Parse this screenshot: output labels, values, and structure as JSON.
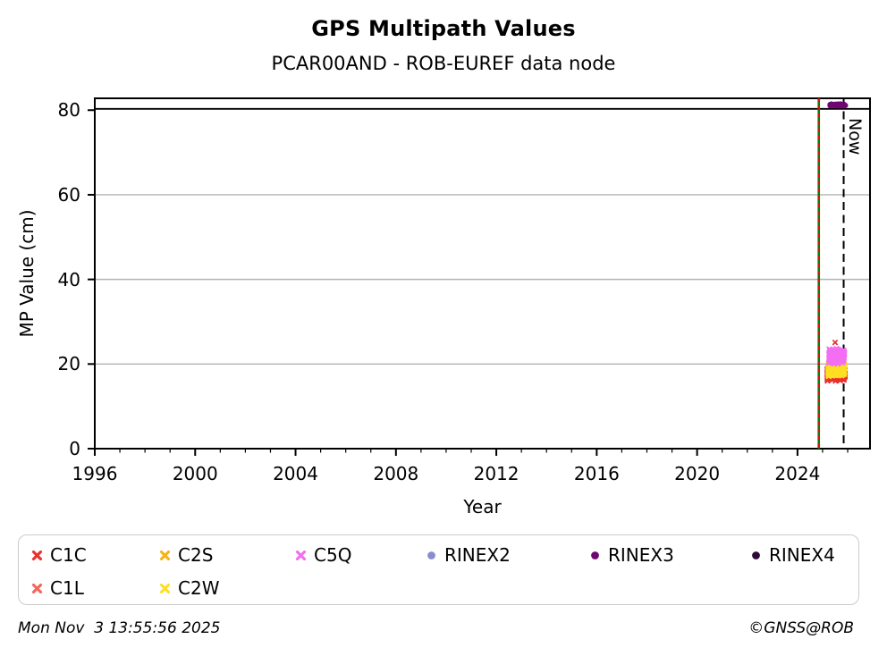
{
  "page": {
    "footer_left": "Mon Nov  3 13:55:56 2025",
    "footer_right": "©GNSS@ROB"
  },
  "chart_data": {
    "type": "scatter",
    "title": "GPS Multipath Values",
    "subtitle": "PCAR00AND - ROB-EUREF data node",
    "xlabel": "Year",
    "ylabel": "MP Value (cm)",
    "xlim": [
      1996,
      2026.89
    ],
    "ylim": [
      0,
      82.8
    ],
    "xticks": [
      1996,
      2000,
      2004,
      2008,
      2012,
      2016,
      2020,
      2024
    ],
    "minor_xtick_interval": 1,
    "yticks": [
      0,
      20,
      40,
      60,
      80
    ],
    "grid": {
      "axis": "y",
      "values": [
        20,
        40,
        60
      ],
      "color": "#b3b3b3"
    },
    "hline": {
      "y": 80.3,
      "color": "#000000"
    },
    "vlines": [
      {
        "name": "data-start-line",
        "x": 2024.85,
        "style": "solid-green-with-red-dashes",
        "color": "#008000",
        "dash_color": "#dd1111",
        "label": ""
      },
      {
        "name": "now-line",
        "x": 2025.84,
        "style": "dashed",
        "color": "#000000",
        "label": "Now"
      }
    ],
    "series": [
      {
        "name": "C1L",
        "marker": "x",
        "color": "#f4665c",
        "cluster": {
          "x_range": [
            2025.18,
            2025.88
          ],
          "y_range": [
            16.3,
            19.6
          ],
          "count": 230
        },
        "outliers": []
      },
      {
        "name": "C1C",
        "marker": "x",
        "color": "#e8312e",
        "cluster": {
          "x_range": [
            2025.18,
            2025.9
          ],
          "y_range": [
            15.9,
            19.2
          ],
          "count": 260
        },
        "outliers": [
          [
            2025.5,
            25.1
          ]
        ]
      },
      {
        "name": "C2S",
        "marker": "x",
        "color": "#f5b31a",
        "cluster": {
          "x_range": [
            2025.22,
            2025.88
          ],
          "y_range": [
            17.4,
            20.4
          ],
          "count": 260
        },
        "outliers": []
      },
      {
        "name": "C2W",
        "marker": "x",
        "color": "#ffdf22",
        "cluster": {
          "x_range": [
            2025.22,
            2025.88
          ],
          "y_range": [
            16.9,
            20.1
          ],
          "count": 280
        },
        "outliers": []
      },
      {
        "name": "C5Q",
        "marker": "x",
        "color": "#f26ef2",
        "cluster": {
          "x_range": [
            2025.25,
            2025.88
          ],
          "y_range": [
            19.9,
            23.8
          ],
          "count": 320
        },
        "outliers": []
      },
      {
        "name": "RINEX2",
        "marker": "circle",
        "color": "#8b8bcf",
        "cluster": null,
        "outliers": []
      },
      {
        "name": "RINEX3",
        "marker": "circle",
        "color": "#6f0672",
        "cluster": {
          "x_range": [
            2025.28,
            2025.95
          ],
          "y_range": [
            80.9,
            81.6
          ],
          "count": 95
        },
        "outliers": []
      },
      {
        "name": "RINEX4",
        "marker": "circle",
        "color": "#2d0b36",
        "cluster": null,
        "outliers": []
      }
    ],
    "legend": [
      {
        "label": "C1C",
        "color": "#e8312e",
        "marker": "x",
        "col": 0,
        "row": 0
      },
      {
        "label": "C2S",
        "color": "#f5b31a",
        "marker": "x",
        "col": 1,
        "row": 0
      },
      {
        "label": "C5Q",
        "color": "#f26ef2",
        "marker": "x",
        "col": 2,
        "row": 0
      },
      {
        "label": "RINEX2",
        "color": "#8b8bcf",
        "marker": "circle",
        "col": 3,
        "row": 0
      },
      {
        "label": "RINEX3",
        "color": "#6f0672",
        "marker": "circle",
        "col": 4,
        "row": 0
      },
      {
        "label": "RINEX4",
        "color": "#2d0b36",
        "marker": "circle",
        "col": 5,
        "row": 0
      },
      {
        "label": "C1L",
        "color": "#f4665c",
        "marker": "x",
        "col": 0,
        "row": 1
      },
      {
        "label": "C2W",
        "color": "#ffdf22",
        "marker": "x",
        "col": 1,
        "row": 1
      }
    ]
  }
}
